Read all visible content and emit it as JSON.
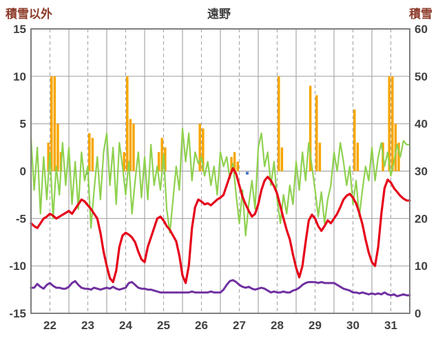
{
  "header": {
    "left_label": "積雪以外",
    "title": "遠野",
    "right_label": "積雪",
    "side_label_color": "#8C3A28",
    "title_color": "#3F3F3F"
  },
  "chart_data": {
    "type": "line",
    "title": "遠野",
    "left_axis": {
      "label": "積雪以外",
      "min": -15,
      "max": 15,
      "ticks": [
        15,
        10,
        5,
        0,
        -5,
        -10,
        -15
      ]
    },
    "right_axis": {
      "label": "積雪",
      "min": 0,
      "max": 60,
      "ticks": [
        60,
        50,
        40,
        30,
        20,
        10,
        0
      ]
    },
    "x_axis": {
      "days": [
        22,
        23,
        24,
        25,
        26,
        27,
        28,
        29,
        30,
        31
      ],
      "hours_per_day": 24,
      "sample_step_hours": 2
    },
    "grid": {
      "line_color": "#A6A6A6",
      "border_color": "#7F7F7F",
      "tick_text_color": "#404040"
    },
    "series": [
      {
        "name": "orange-bars",
        "type": "bar",
        "color": "#F7A600",
        "values_by_day": [
          [
            0,
            0,
            0,
            0,
            0,
            3,
            10,
            10,
            5,
            2,
            0,
            0
          ],
          [
            0,
            0,
            0,
            0,
            0,
            0,
            4,
            3.5,
            0,
            0,
            0,
            0
          ],
          [
            0,
            0,
            0,
            0,
            0,
            2,
            10,
            5.5,
            5,
            0,
            0,
            0
          ],
          [
            0,
            0,
            0,
            0,
            2,
            3.5,
            2.5,
            0,
            0,
            0,
            0,
            0
          ],
          [
            0,
            0,
            0,
            0,
            0,
            5,
            4.5,
            0,
            0,
            0,
            0,
            0
          ],
          [
            0,
            0,
            0,
            1.5,
            2,
            1,
            0,
            0,
            0,
            0,
            0,
            0
          ],
          [
            0,
            0,
            0,
            0,
            0,
            0,
            10,
            2.5,
            0,
            0,
            0,
            0
          ],
          [
            0,
            0,
            0,
            0,
            9,
            0,
            8,
            3,
            0,
            0,
            0,
            0
          ],
          [
            0,
            0,
            0,
            0,
            0,
            0,
            6.5,
            3,
            0,
            0,
            0,
            0
          ],
          [
            0,
            0,
            0,
            3,
            0,
            10,
            10,
            5,
            3,
            0,
            0,
            0
          ]
        ]
      },
      {
        "name": "green-line",
        "type": "line",
        "color": "#8FD14F",
        "width": 2.2,
        "values_by_day": [
          [
            3.5,
            -2.0,
            2.5,
            -4.5,
            1.5,
            -3.0,
            2.0,
            -5.0,
            0.5,
            -2.5,
            3.0,
            -1.5
          ],
          [
            2.5,
            -3.5,
            1.0,
            -4.0,
            2.0,
            -1.0,
            0.5,
            -6.0,
            -2.0,
            1.5,
            -3.0,
            2.0
          ],
          [
            4.0,
            -1.5,
            2.5,
            -3.5,
            3.0,
            0.5,
            -2.5,
            1.0,
            -4.5,
            -1.0,
            2.0,
            -2.8
          ],
          [
            1.5,
            -3.0,
            2.8,
            -1.5,
            0.5,
            -2.0,
            1.8,
            -4.0,
            -6.5,
            -3.0,
            0.5,
            -2.0
          ],
          [
            4.5,
            1.0,
            4.0,
            -1.0,
            2.0,
            0.8,
            1.5,
            -0.5,
            1.0,
            -1.5,
            0.5,
            -2.5
          ],
          [
            2.0,
            0.5,
            1.5,
            -0.8,
            0.8,
            -2.5,
            -5.5,
            -2.0,
            -6.8,
            -3.5,
            -1.0,
            -4.0
          ],
          [
            2.5,
            4.0,
            0.5,
            2.0,
            -1.5,
            1.0,
            -3.0,
            -5.5,
            -2.5,
            -4.5,
            -1.5,
            -3.5
          ],
          [
            1.0,
            -2.0,
            2.0,
            -1.0,
            3.0,
            0.5,
            -2.0,
            -4.8,
            -2.2,
            -5.5,
            -3.0,
            -1.5
          ],
          [
            2.0,
            0.0,
            3.0,
            1.0,
            -1.5,
            0.5,
            -3.5,
            -1.0,
            -4.8,
            -2.0,
            0.5,
            -1.0
          ],
          [
            2.5,
            -1.0,
            1.5,
            3.0,
            0.5,
            2.0,
            -0.5,
            1.0,
            2.8,
            1.5,
            3.2,
            2.8
          ]
        ]
      },
      {
        "name": "red-line",
        "type": "line",
        "color": "#E60019",
        "width": 3.2,
        "values_by_day": [
          [
            -5.5,
            -5.8,
            -6.0,
            -5.5,
            -5.0,
            -4.8,
            -4.5,
            -4.7,
            -5.0,
            -4.8,
            -4.6,
            -4.4
          ],
          [
            -4.2,
            -4.5,
            -4.0,
            -3.5,
            -3.0,
            -3.2,
            -3.6,
            -4.0,
            -4.5,
            -5.0,
            -6.5,
            -8.5
          ],
          [
            -10.0,
            -11.3,
            -11.7,
            -10.5,
            -8.0,
            -6.8,
            -6.5,
            -6.7,
            -7.0,
            -7.5,
            -8.5,
            -9.3
          ],
          [
            -9.6,
            -8.0,
            -7.0,
            -6.0,
            -5.0,
            -4.8,
            -5.2,
            -5.8,
            -6.2,
            -6.8,
            -7.4,
            -8.9
          ],
          [
            -11.0,
            -11.8,
            -10.0,
            -6.0,
            -3.8,
            -3.0,
            -3.2,
            -3.5,
            -3.4,
            -3.6,
            -3.3,
            -3.0
          ],
          [
            -2.8,
            -2.5,
            -1.5,
            -0.5,
            0.3,
            -0.3,
            -1.5,
            -2.7,
            -3.5,
            -4.2,
            -4.8,
            -4.5
          ],
          [
            -3.5,
            -2.0,
            -1.0,
            -0.6,
            -1.0,
            -1.6,
            -2.4,
            -3.7,
            -5.0,
            -6.2,
            -7.2,
            -8.8
          ],
          [
            -10.2,
            -11.2,
            -10.0,
            -7.5,
            -5.2,
            -4.6,
            -5.0,
            -5.8,
            -6.3,
            -5.8,
            -5.2,
            -5.5
          ],
          [
            -5.0,
            -4.5,
            -3.8,
            -3.0,
            -2.6,
            -2.4,
            -2.8,
            -3.4,
            -4.4,
            -5.6,
            -7.2,
            -8.6
          ],
          [
            -9.6,
            -10.0,
            -8.0,
            -4.5,
            -1.8,
            -0.9,
            -1.2,
            -1.8,
            -2.2,
            -2.6,
            -2.9,
            -3.1
          ]
        ]
      },
      {
        "name": "purple-line",
        "type": "line",
        "color": "#7030A0",
        "width": 3,
        "values_by_day": [
          [
            -12.3,
            -12.3,
            -11.9,
            -12.2,
            -12.4,
            -12.0,
            -11.8,
            -12.1,
            -12.3,
            -12.3,
            -12.4,
            -12.4
          ],
          [
            -12.2,
            -11.8,
            -11.6,
            -12.0,
            -12.3,
            -12.4,
            -12.4,
            -12.5,
            -12.3,
            -12.4,
            -12.5,
            -12.4
          ],
          [
            -12.3,
            -12.4,
            -12.2,
            -12.4,
            -12.5,
            -12.4,
            -12.3,
            -11.8,
            -11.7,
            -12.0,
            -12.3,
            -12.4
          ],
          [
            -12.4,
            -12.5,
            -12.5,
            -12.6,
            -12.7,
            -12.8,
            -12.8,
            -12.8,
            -12.8,
            -12.8,
            -12.8,
            -12.8
          ],
          [
            -12.8,
            -12.8,
            -12.8,
            -12.7,
            -12.8,
            -12.8,
            -12.8,
            -12.8,
            -12.8,
            -12.7,
            -12.8,
            -12.8
          ],
          [
            -12.8,
            -12.5,
            -12.0,
            -11.6,
            -11.5,
            -11.7,
            -12.0,
            -12.2,
            -12.3,
            -12.2,
            -12.4,
            -12.5
          ],
          [
            -12.4,
            -12.3,
            -12.4,
            -12.6,
            -12.8,
            -12.7,
            -12.8,
            -12.8,
            -12.7,
            -12.8,
            -12.8,
            -12.6
          ],
          [
            -12.5,
            -12.3,
            -12.0,
            -11.8,
            -11.7,
            -11.7,
            -11.7,
            -11.8,
            -11.7,
            -11.8,
            -11.8,
            -11.8
          ],
          [
            -11.8,
            -12.0,
            -12.2,
            -12.4,
            -12.5,
            -12.6,
            -12.8,
            -12.8,
            -12.9,
            -12.8,
            -12.9,
            -13.0
          ],
          [
            -12.9,
            -13.0,
            -12.9,
            -13.0,
            -12.8,
            -13.0,
            -13.1,
            -13.0,
            -13.2,
            -13.1,
            -13.0,
            -13.1
          ]
        ]
      }
    ],
    "blue_marks": {
      "color": "#4472C4",
      "points": [
        {
          "day_index": 1,
          "hour": 12
        },
        {
          "day_index": 5,
          "hour": 17
        }
      ]
    }
  }
}
